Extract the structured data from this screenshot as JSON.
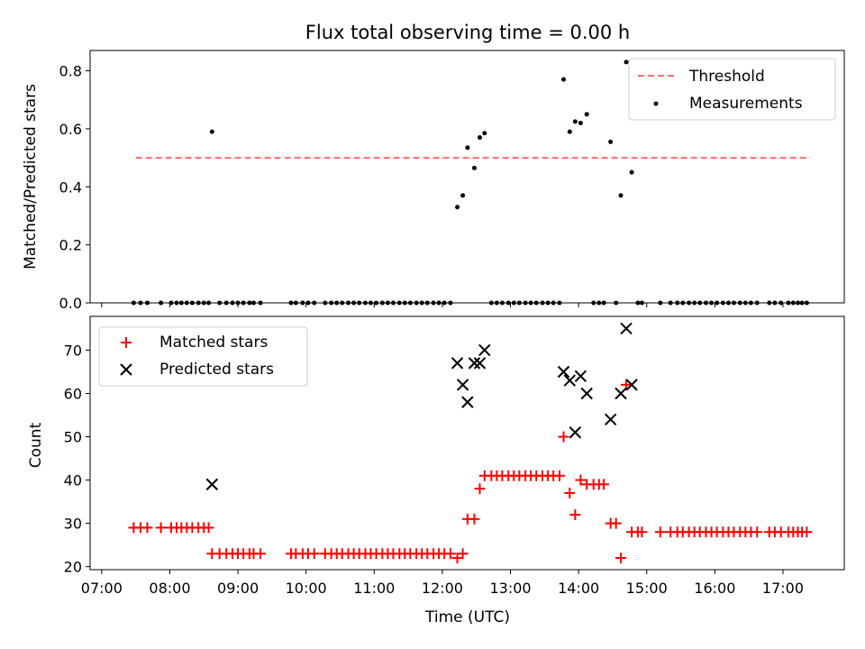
{
  "chart_data": [
    {
      "type": "scatter",
      "title": "Flux total observing time = 0.00 h",
      "xlabel": "",
      "ylabel": "Matched/Predicted stars",
      "xlim_hours": [
        6.83,
        17.9
      ],
      "ylim": [
        0,
        0.87
      ],
      "yticks": [
        0.0,
        0.2,
        0.4,
        0.6,
        0.8
      ],
      "ytick_labels": [
        "0.0",
        "0.2",
        "0.4",
        "0.6",
        "0.8"
      ],
      "legend": {
        "position": "top-right",
        "entries": [
          "Threshold",
          "Measurements"
        ]
      },
      "threshold": {
        "name": "Threshold",
        "value": 0.5,
        "x_start": 7.5,
        "x_end": 17.4,
        "color": "#ff6b6b",
        "style": "dashed"
      },
      "series": [
        {
          "name": "Measurements",
          "color": "#000000",
          "marker": "dot",
          "x": [
            7.47,
            7.57,
            7.67,
            7.87,
            8.02,
            8.1,
            8.17,
            8.25,
            8.33,
            8.42,
            8.5,
            8.57,
            8.62,
            8.73,
            8.83,
            8.92,
            9.0,
            9.08,
            9.17,
            9.23,
            9.33,
            9.78,
            9.85,
            9.95,
            10.03,
            10.12,
            10.28,
            10.37,
            10.45,
            10.53,
            10.62,
            10.7,
            10.78,
            10.87,
            10.95,
            11.03,
            11.12,
            11.2,
            11.28,
            11.37,
            11.45,
            11.53,
            11.62,
            11.7,
            11.78,
            11.87,
            11.95,
            12.03,
            12.12,
            12.22,
            12.3,
            12.37,
            12.47,
            12.55,
            12.62,
            12.72,
            12.8,
            12.88,
            12.97,
            13.05,
            13.13,
            13.22,
            13.3,
            13.38,
            13.47,
            13.55,
            13.63,
            13.72,
            13.78,
            13.87,
            13.95,
            14.03,
            14.12,
            14.22,
            14.3,
            14.37,
            14.47,
            14.55,
            14.62,
            14.7,
            14.78,
            14.87,
            14.93,
            15.2,
            15.35,
            15.45,
            15.53,
            15.62,
            15.7,
            15.78,
            15.87,
            15.95,
            16.03,
            16.12,
            16.2,
            16.28,
            16.37,
            16.45,
            16.53,
            16.62,
            16.8,
            16.88,
            16.97,
            17.08,
            17.15,
            17.22,
            17.28,
            17.35
          ],
          "y": [
            0,
            0,
            0,
            0,
            0,
            0,
            0,
            0,
            0,
            0,
            0,
            0,
            0.59,
            0,
            0,
            0,
            0,
            0,
            0,
            0,
            0,
            0,
            0,
            0,
            0,
            0,
            0,
            0,
            0,
            0,
            0,
            0,
            0,
            0,
            0,
            0,
            0,
            0,
            0,
            0,
            0,
            0,
            0,
            0,
            0,
            0,
            0,
            0,
            0,
            0.33,
            0.37,
            0.535,
            0.465,
            0.57,
            0.585,
            0,
            0,
            0,
            0,
            0,
            0,
            0,
            0,
            0,
            0,
            0,
            0,
            0,
            0.77,
            0.59,
            0.625,
            0.62,
            0.65,
            0,
            0,
            0,
            0.555,
            0,
            0.37,
            0.83,
            0.45,
            0,
            0,
            0,
            0,
            0,
            0,
            0,
            0,
            0,
            0,
            0,
            0,
            0,
            0,
            0,
            0,
            0,
            0,
            0,
            0,
            0,
            0,
            0,
            0,
            0,
            0,
            0
          ]
        }
      ]
    },
    {
      "type": "scatter",
      "title": "",
      "xlabel": "Time (UTC)",
      "ylabel": "Count",
      "xlim_hours": [
        6.83,
        17.9
      ],
      "ylim": [
        19.3,
        77.8
      ],
      "yticks": [
        20,
        30,
        40,
        50,
        60,
        70
      ],
      "ytick_labels": [
        "20",
        "30",
        "40",
        "50",
        "60",
        "70"
      ],
      "xticks_hours": [
        7,
        8,
        9,
        10,
        11,
        12,
        13,
        14,
        15,
        16,
        17
      ],
      "xtick_labels": [
        "07:00",
        "08:00",
        "09:00",
        "10:00",
        "11:00",
        "12:00",
        "13:00",
        "14:00",
        "15:00",
        "16:00",
        "17:00"
      ],
      "legend": {
        "position": "top-left",
        "entries": [
          "Matched stars",
          "Predicted stars"
        ]
      },
      "series": [
        {
          "name": "Matched stars",
          "color": "#ff0000",
          "marker": "plus",
          "x": [
            7.47,
            7.57,
            7.67,
            7.87,
            8.02,
            8.1,
            8.17,
            8.25,
            8.33,
            8.42,
            8.5,
            8.57,
            8.62,
            8.73,
            8.83,
            8.92,
            9.0,
            9.08,
            9.17,
            9.23,
            9.33,
            9.78,
            9.85,
            9.95,
            10.03,
            10.12,
            10.28,
            10.37,
            10.45,
            10.53,
            10.62,
            10.7,
            10.78,
            10.87,
            10.95,
            11.03,
            11.12,
            11.2,
            11.28,
            11.37,
            11.45,
            11.53,
            11.62,
            11.7,
            11.78,
            11.87,
            11.95,
            12.03,
            12.12,
            12.22,
            12.3,
            12.37,
            12.47,
            12.55,
            12.62,
            12.72,
            12.8,
            12.88,
            12.97,
            13.05,
            13.13,
            13.22,
            13.3,
            13.38,
            13.47,
            13.55,
            13.63,
            13.72,
            13.78,
            13.87,
            13.95,
            14.03,
            14.12,
            14.22,
            14.3,
            14.37,
            14.47,
            14.55,
            14.62,
            14.7,
            14.78,
            14.87,
            14.93,
            15.2,
            15.35,
            15.45,
            15.53,
            15.62,
            15.7,
            15.78,
            15.87,
            15.95,
            16.03,
            16.12,
            16.2,
            16.28,
            16.37,
            16.45,
            16.53,
            16.62,
            16.8,
            16.88,
            16.97,
            17.08,
            17.15,
            17.22,
            17.28,
            17.35
          ],
          "y": [
            29,
            29,
            29,
            29,
            29,
            29,
            29,
            29,
            29,
            29,
            29,
            29,
            23,
            23,
            23,
            23,
            23,
            23,
            23,
            23,
            23,
            23,
            23,
            23,
            23,
            23,
            23,
            23,
            23,
            23,
            23,
            23,
            23,
            23,
            23,
            23,
            23,
            23,
            23,
            23,
            23,
            23,
            23,
            23,
            23,
            23,
            23,
            23,
            23,
            22,
            23,
            31,
            31,
            38,
            41,
            41,
            41,
            41,
            41,
            41,
            41,
            41,
            41,
            41,
            41,
            41,
            41,
            41,
            50,
            37,
            32,
            40,
            39,
            39,
            39,
            39,
            30,
            30,
            22,
            62,
            28,
            28,
            28,
            28,
            28,
            28,
            28,
            28,
            28,
            28,
            28,
            28,
            28,
            28,
            28,
            28,
            28,
            28,
            28,
            28,
            28,
            28,
            28,
            28,
            28,
            28,
            28,
            28
          ]
        },
        {
          "name": "Predicted stars",
          "color": "#000000",
          "marker": "x",
          "x": [
            8.62,
            12.22,
            12.3,
            12.37,
            12.47,
            12.55,
            12.62,
            13.78,
            13.87,
            13.95,
            14.03,
            14.12,
            14.47,
            14.62,
            14.7,
            14.78
          ],
          "y": [
            39,
            67,
            62,
            58,
            67,
            67,
            70,
            65,
            63,
            51,
            64,
            60,
            54,
            60,
            75,
            62
          ]
        }
      ]
    }
  ]
}
